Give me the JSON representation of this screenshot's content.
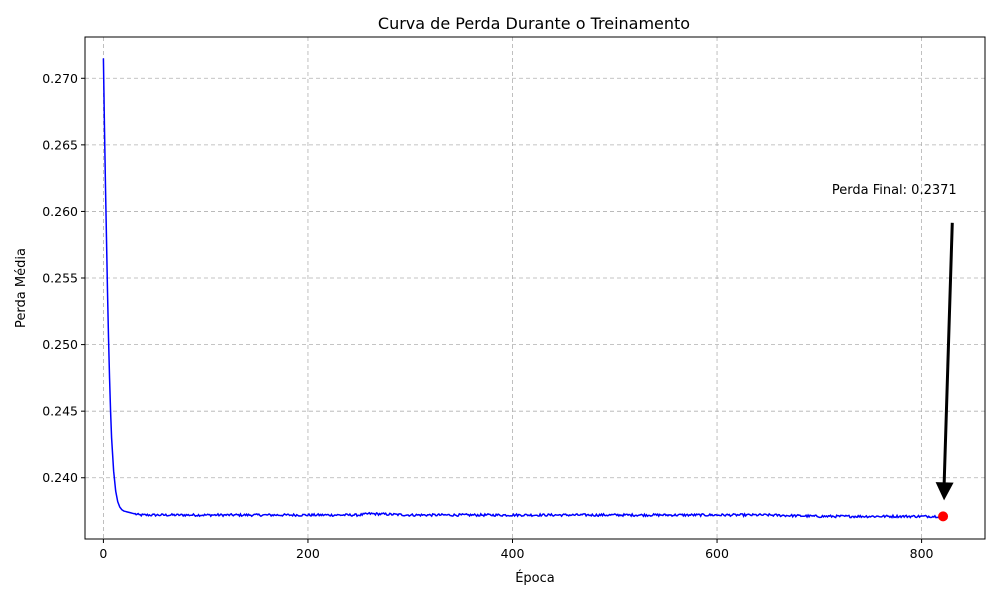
{
  "chart_data": {
    "type": "line",
    "title": "Curva de Perda Durante o Treinamento",
    "xlabel": "Época",
    "ylabel": "Perda Média",
    "xlim": [
      -18,
      862
    ],
    "ylim": [
      0.2354,
      0.2731
    ],
    "xticks": [
      0,
      200,
      400,
      600,
      800
    ],
    "yticks": [
      0.24,
      0.245,
      0.25,
      0.255,
      0.26,
      0.265,
      0.27
    ],
    "ytick_labels": [
      "0.240",
      "0.245",
      "0.250",
      "0.255",
      "0.260",
      "0.265",
      "0.270"
    ],
    "grid": true,
    "series": [
      {
        "color": "#0000ff",
        "epochs": 822,
        "x": [
          0,
          1,
          2,
          3,
          4,
          5,
          6,
          7,
          8,
          10,
          12,
          14,
          16,
          18,
          20,
          25,
          30,
          35,
          40,
          50,
          60,
          80,
          100,
          150,
          200,
          250,
          260,
          300,
          350,
          400,
          450,
          500,
          550,
          600,
          650,
          700,
          750,
          800,
          821
        ],
        "y": [
          0.2715,
          0.2665,
          0.262,
          0.258,
          0.254,
          0.2505,
          0.2475,
          0.245,
          0.243,
          0.2405,
          0.239,
          0.2382,
          0.2378,
          0.2376,
          0.2375,
          0.2374,
          0.2373,
          0.2372,
          0.2372,
          0.2372,
          0.2372,
          0.2372,
          0.2372,
          0.2372,
          0.2372,
          0.2372,
          0.2373,
          0.2372,
          0.2372,
          0.2372,
          0.2372,
          0.2372,
          0.2372,
          0.2372,
          0.2372,
          0.2371,
          0.2371,
          0.2371,
          0.2371
        ]
      }
    ],
    "final_point": {
      "x": 821,
      "y": 0.2371,
      "color": "#ff0000"
    },
    "annotation": {
      "text": "Perda Final: 0.2371",
      "text_x": 830,
      "text_y": 0.2608,
      "arrow_color": "#000000"
    }
  }
}
